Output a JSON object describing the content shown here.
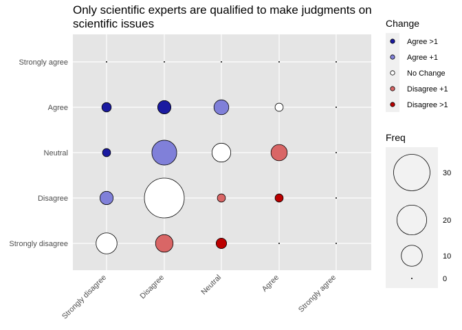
{
  "chart_data": {
    "type": "scatter",
    "title_line1": "Only scientific experts are qualified to make judgments on",
    "title_line2": "scientific issues",
    "xlabel": "",
    "ylabel": "",
    "x_categories": [
      "Strongly disagree",
      "Disagree",
      "Neutral",
      "Agree",
      "Strongly agree"
    ],
    "y_categories": [
      "Strongly disagree",
      "Disagree",
      "Neutral",
      "Agree",
      "Strongly agree"
    ],
    "grid": true,
    "change_legend": {
      "title": "Change",
      "placement": "right",
      "entries": [
        {
          "label": "Agree >1",
          "color": "#1a1aa0"
        },
        {
          "label": "Agree +1",
          "color": "#8080d9"
        },
        {
          "label": "No Change",
          "color": "#ffffff"
        },
        {
          "label": "Disagree +1",
          "color": "#d96666"
        },
        {
          "label": "Disagree >1",
          "color": "#bb0000"
        }
      ]
    },
    "size_legend": {
      "title": "Freq",
      "placement": "right",
      "breaks": [
        30,
        20,
        10,
        0
      ],
      "labels": [
        "30",
        "20",
        "10",
        "0"
      ],
      "max_value": 36
    },
    "points": [
      {
        "x": "Strongly disagree",
        "y": "Strongly agree",
        "freq": 0,
        "change": "Agree >1"
      },
      {
        "x": "Disagree",
        "y": "Strongly agree",
        "freq": 0,
        "change": "Agree >1"
      },
      {
        "x": "Neutral",
        "y": "Strongly agree",
        "freq": 0,
        "change": "Agree >1"
      },
      {
        "x": "Agree",
        "y": "Strongly agree",
        "freq": 0,
        "change": "Agree +1"
      },
      {
        "x": "Strongly agree",
        "y": "Strongly agree",
        "freq": 0,
        "change": "No Change"
      },
      {
        "x": "Strongly disagree",
        "y": "Agree",
        "freq": 2,
        "change": "Agree >1"
      },
      {
        "x": "Disagree",
        "y": "Agree",
        "freq": 4,
        "change": "Agree >1"
      },
      {
        "x": "Neutral",
        "y": "Agree",
        "freq": 5,
        "change": "Agree +1"
      },
      {
        "x": "Agree",
        "y": "Agree",
        "freq": 1.5,
        "change": "No Change"
      },
      {
        "x": "Strongly agree",
        "y": "Agree",
        "freq": 0,
        "change": "Disagree +1"
      },
      {
        "x": "Strongly disagree",
        "y": "Neutral",
        "freq": 1.5,
        "change": "Agree >1"
      },
      {
        "x": "Disagree",
        "y": "Neutral",
        "freq": 14,
        "change": "Agree +1"
      },
      {
        "x": "Neutral",
        "y": "Neutral",
        "freq": 8,
        "change": "No Change"
      },
      {
        "x": "Agree",
        "y": "Neutral",
        "freq": 6,
        "change": "Disagree +1"
      },
      {
        "x": "Strongly agree",
        "y": "Neutral",
        "freq": 0,
        "change": "Disagree >1"
      },
      {
        "x": "Strongly disagree",
        "y": "Disagree",
        "freq": 4,
        "change": "Agree +1"
      },
      {
        "x": "Disagree",
        "y": "Disagree",
        "freq": 36,
        "change": "No Change"
      },
      {
        "x": "Neutral",
        "y": "Disagree",
        "freq": 1.5,
        "change": "Disagree +1"
      },
      {
        "x": "Agree",
        "y": "Disagree",
        "freq": 1.5,
        "change": "Disagree >1"
      },
      {
        "x": "Strongly agree",
        "y": "Disagree",
        "freq": 0,
        "change": "Disagree >1"
      },
      {
        "x": "Strongly disagree",
        "y": "Strongly disagree",
        "freq": 10,
        "change": "No Change"
      },
      {
        "x": "Disagree",
        "y": "Strongly disagree",
        "freq": 7,
        "change": "Disagree +1"
      },
      {
        "x": "Neutral",
        "y": "Strongly disagree",
        "freq": 2.5,
        "change": "Disagree >1"
      },
      {
        "x": "Agree",
        "y": "Strongly disagree",
        "freq": 0,
        "change": "Disagree >1"
      },
      {
        "x": "Strongly agree",
        "y": "Strongly disagree",
        "freq": 0,
        "change": "Disagree >1"
      }
    ]
  }
}
